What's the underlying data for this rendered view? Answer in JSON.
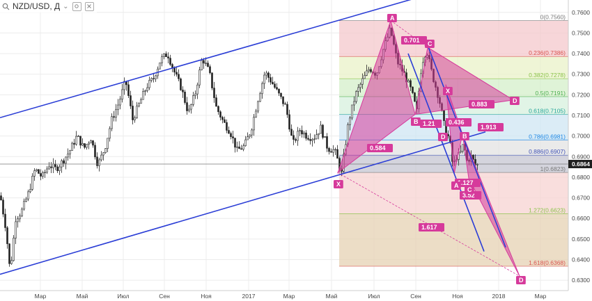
{
  "header": {
    "symbol": "NZD/USD",
    "interval": "Д",
    "chevron": "⌄",
    "sep": ","
  },
  "chart_data": {
    "type": "candlestick-annotated",
    "instrument": "NZD/USD",
    "timeframe": "Д",
    "x_labels": [
      "Мар",
      "Май",
      "Июл",
      "Сен",
      "Ноя",
      "2017",
      "Мар",
      "Май",
      "Июл",
      "Сен",
      "Ноя",
      "2018",
      "Мар"
    ],
    "ylim": [
      0.625,
      0.766
    ],
    "y_ticks": [
      0.63,
      0.64,
      0.65,
      0.66,
      0.67,
      0.68,
      0.69,
      0.7,
      0.71,
      0.72,
      0.73,
      0.74,
      0.75,
      0.76
    ],
    "y_tick_labels": [
      "0.6300",
      "0.6400",
      "0.6500",
      "0.6600",
      "0.6700",
      "0.6800",
      "0.6900",
      "0.7000",
      "0.7100",
      "0.7200",
      "0.7300",
      "0.7400",
      "0.7500",
      "0.7600"
    ],
    "current_price": 0.6864,
    "current_price_label": "0.6864",
    "price_path": [
      [
        0,
        0.671
      ],
      [
        8,
        0.655
      ],
      [
        14,
        0.634
      ],
      [
        22,
        0.66
      ],
      [
        30,
        0.663
      ],
      [
        40,
        0.672
      ],
      [
        50,
        0.684
      ],
      [
        60,
        0.68
      ],
      [
        70,
        0.686
      ],
      [
        80,
        0.684
      ],
      [
        90,
        0.688
      ],
      [
        100,
        0.693
      ],
      [
        110,
        0.7
      ],
      [
        120,
        0.694
      ],
      [
        130,
        0.699
      ],
      [
        140,
        0.686
      ],
      [
        150,
        0.694
      ],
      [
        160,
        0.708
      ],
      [
        170,
        0.716
      ],
      [
        180,
        0.727
      ],
      [
        190,
        0.708
      ],
      [
        200,
        0.716
      ],
      [
        210,
        0.724
      ],
      [
        220,
        0.728
      ],
      [
        230,
        0.737
      ],
      [
        240,
        0.74
      ],
      [
        250,
        0.731
      ],
      [
        260,
        0.723
      ],
      [
        270,
        0.711
      ],
      [
        280,
        0.721
      ],
      [
        290,
        0.738
      ],
      [
        300,
        0.731
      ],
      [
        310,
        0.714
      ],
      [
        320,
        0.707
      ],
      [
        330,
        0.702
      ],
      [
        340,
        0.693
      ],
      [
        350,
        0.695
      ],
      [
        360,
        0.703
      ],
      [
        370,
        0.718
      ],
      [
        380,
        0.731
      ],
      [
        390,
        0.726
      ],
      [
        400,
        0.72
      ],
      [
        410,
        0.714
      ],
      [
        420,
        0.696
      ],
      [
        430,
        0.703
      ],
      [
        440,
        0.7
      ],
      [
        450,
        0.699
      ],
      [
        460,
        0.704
      ],
      [
        470,
        0.694
      ],
      [
        480,
        0.693
      ],
      [
        490,
        0.682
      ],
      [
        500,
        0.707
      ],
      [
        510,
        0.72
      ],
      [
        520,
        0.727
      ],
      [
        530,
        0.733
      ],
      [
        540,
        0.73
      ],
      [
        550,
        0.742
      ],
      [
        560,
        0.752
      ],
      [
        570,
        0.736
      ],
      [
        580,
        0.73
      ],
      [
        590,
        0.722
      ],
      [
        598,
        0.712
      ],
      [
        605,
        0.735
      ],
      [
        612,
        0.742
      ],
      [
        620,
        0.73
      ],
      [
        630,
        0.718
      ],
      [
        638,
        0.704
      ],
      [
        645,
        0.698
      ],
      [
        650,
        0.685
      ],
      [
        655,
        0.69
      ],
      [
        660,
        0.691
      ],
      [
        665,
        0.696
      ],
      [
        670,
        0.688
      ],
      [
        676,
        0.69
      ],
      [
        682,
        0.686
      ],
      [
        686,
        0.686
      ]
    ],
    "fibonacci": {
      "levels": [
        {
          "label": "0(0.7560)",
          "value": 0.756,
          "fill": "#f4c8cc",
          "text_color": "#777777"
        },
        {
          "label": "0.236(0.7386)",
          "value": 0.7386,
          "fill": "#e9f2c8",
          "text_color": "#d9534f"
        },
        {
          "label": "0.382(0.7278)",
          "value": 0.7278,
          "fill": "#d4efc9",
          "text_color": "#8bc34a"
        },
        {
          "label": "0.5(0.7191)",
          "value": 0.7191,
          "fill": "#d7f0dd",
          "text_color": "#4caf50"
        },
        {
          "label": "0.618(0.7105)",
          "value": 0.7105,
          "fill": "#cfe6f3",
          "text_color": "#26a69a"
        },
        {
          "label": "0.786(0.6981)",
          "value": 0.6981,
          "fill": "#e3e3e3",
          "text_color": "#1e88e5"
        },
        {
          "label": "0.886(0.6907)",
          "value": 0.6907,
          "fill": "#c6c6d2",
          "text_color": "#3f51b5"
        },
        {
          "label": "1(0.6823)",
          "value": 0.6823,
          "fill": "#f7d3d1",
          "text_color": "#777777"
        },
        {
          "label": "1.272(0.6623)",
          "value": 0.6623,
          "fill": "#e6d1b3",
          "text_color": "#8bc34a"
        },
        {
          "label": "1.618(0.6368)",
          "value": 0.6368,
          "fill": "none",
          "text_color": "#d9534f"
        }
      ]
    },
    "trend_lines": [
      {
        "name": "channel-upper",
        "from": [
          "0",
          0.7089
        ],
        "to": [
          "end",
          0.7672
        ]
      },
      {
        "name": "channel-lower",
        "from": [
          "0",
          0.6329
        ],
        "to": [
          "D",
          0.702
        ]
      }
    ],
    "harmonic_points": [
      "X",
      "A",
      "B",
      "C",
      "D"
    ],
    "ratio_labels": [
      "0.701",
      "0.584",
      "1.21",
      "0.436",
      "0.883",
      "1.913",
      "1.617",
      "1.127",
      "3.52"
    ],
    "point_labels": [
      "A",
      "X",
      "B",
      "C",
      "D",
      "X",
      "D",
      "A",
      "B",
      "C",
      "D"
    ]
  },
  "colors": {
    "accent_blue": "#2b3ed6",
    "pattern_pink": "#d63a9b",
    "grid": "#ececec",
    "candle": "#222222"
  }
}
